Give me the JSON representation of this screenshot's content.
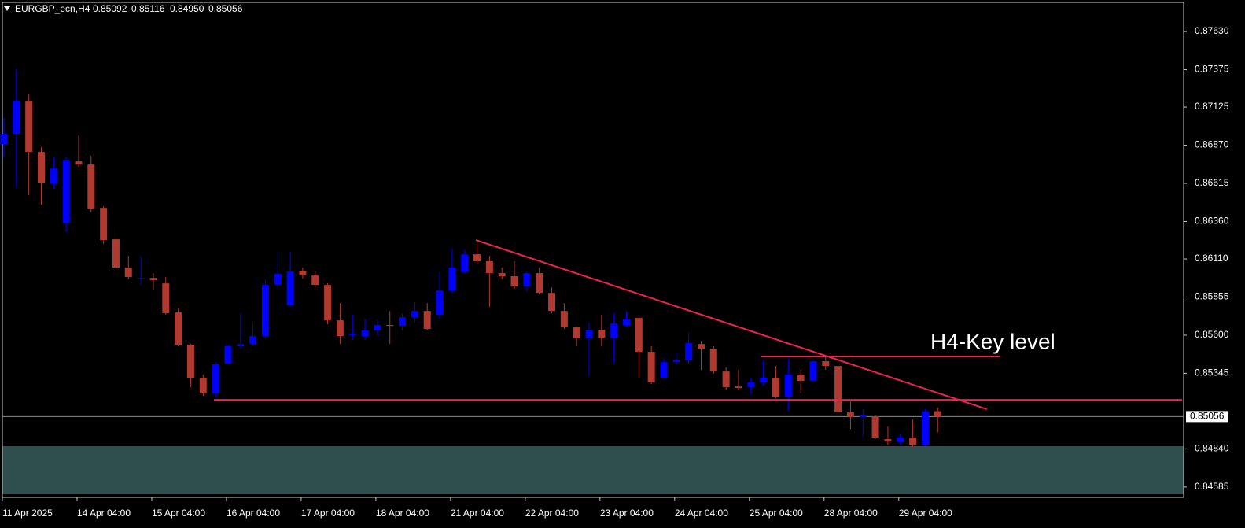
{
  "chart_data": {
    "type": "candlestick",
    "title": "EURGBP_ecn,H4",
    "ohlc_labels": [
      "0.85092",
      "0.85116",
      "0.84950",
      "0.85056"
    ],
    "categories": [
      "11 Apr 2025",
      null,
      null,
      null,
      null,
      null,
      "14 Apr 04:00",
      null,
      null,
      null,
      null,
      null,
      "15 Apr 04:00",
      null,
      null,
      null,
      null,
      null,
      "16 Apr 04:00",
      null,
      null,
      null,
      null,
      null,
      "17 Apr 04:00",
      null,
      null,
      null,
      null,
      null,
      "18 Apr 04:00",
      null,
      null,
      null,
      null,
      null,
      "21 Apr 04:00",
      null,
      null,
      null,
      null,
      null,
      "22 Apr 04:00",
      null,
      null,
      null,
      null,
      null,
      "23 Apr 04:00",
      null,
      null,
      null,
      null,
      null,
      "24 Apr 04:00",
      null,
      null,
      null,
      null,
      null,
      "25 Apr 04:00",
      null,
      null,
      null,
      null,
      null,
      "28 Apr 04:00",
      null,
      null,
      null,
      null,
      null,
      "29 Apr 04:00",
      null,
      null,
      null
    ],
    "open": [
      0.86877,
      0.86946,
      0.87167,
      0.86825,
      0.86614,
      0.86351,
      0.86762,
      0.86741,
      0.86451,
      0.86241,
      0.86052,
      0.85978,
      0.85983,
      0.85946,
      0.85752,
      0.85536,
      0.85315,
      0.8521,
      0.8541,
      0.85526,
      0.85541,
      0.85594,
      0.85936,
      0.85799,
      0.86031,
      0.85999,
      0.85936,
      0.85699,
      0.85599,
      0.85594,
      0.85631,
      0.85668,
      0.85662,
      0.8572,
      0.85762,
      0.85736,
      0.85899,
      0.86025,
      0.86141,
      0.86094,
      0.86015,
      0.85994,
      0.85925,
      0.86015,
      0.85883,
      0.85762,
      0.85652,
      0.85578,
      0.85636,
      0.85584,
      0.85668,
      0.85715,
      0.85489,
      0.85315,
      0.8542,
      0.85431,
      0.85541,
      0.8551,
      0.85357,
      0.85257,
      0.85252,
      0.85284,
      0.85315,
      0.85189,
      0.85336,
      0.85294,
      0.85426,
      0.85394,
      0.85084,
      0.85052,
      0.85058,
      0.84905,
      0.84889,
      0.84915,
      0.84868,
      0.85092
    ],
    "high": [
      0.87051,
      0.87377,
      0.87209,
      0.86856,
      0.86788,
      0.86788,
      0.86935,
      0.86799,
      0.86462,
      0.86325,
      0.86131,
      0.86131,
      0.86015,
      0.85989,
      0.85778,
      0.85541,
      0.85336,
      0.8542,
      0.85536,
      0.85747,
      0.85683,
      0.85973,
      0.86157,
      0.86157,
      0.86052,
      0.86025,
      0.85946,
      0.85815,
      0.85736,
      0.8571,
      0.85699,
      0.85762,
      0.85747,
      0.8582,
      0.85815,
      0.86025,
      0.86178,
      0.86167,
      0.86209,
      0.86131,
      0.86052,
      0.86094,
      0.86025,
      0.86052,
      0.8592,
      0.85815,
      0.85657,
      0.85683,
      0.85736,
      0.85747,
      0.85762,
      0.8572,
      0.85526,
      0.85447,
      0.85484,
      0.8562,
      0.85562,
      0.85526,
      0.85384,
      0.85368,
      0.85315,
      0.85431,
      0.85394,
      0.85441,
      0.85368,
      0.85441,
      0.85457,
      0.8541,
      0.85157,
      0.85105,
      0.85063,
      0.84989,
      0.84937,
      0.85036,
      0.85105,
      0.85116
    ],
    "low": [
      0.86788,
      0.86588,
      0.86536,
      0.86472,
      0.86578,
      0.86288,
      0.86725,
      0.8642,
      0.86209,
      0.86041,
      0.85973,
      0.85936,
      0.85904,
      0.85736,
      0.85526,
      0.85252,
      0.85194,
      0.85184,
      0.85405,
      0.8551,
      0.85526,
      0.85578,
      0.8592,
      0.85789,
      0.85978,
      0.8592,
      0.85673,
      0.85541,
      0.85568,
      0.85568,
      0.85594,
      0.85541,
      0.85631,
      0.85683,
      0.85631,
      0.8571,
      0.85883,
      0.86015,
      0.86073,
      0.85789,
      0.85973,
      0.8591,
      0.85894,
      0.85873,
      0.85747,
      0.85641,
      0.85526,
      0.85326,
      0.85526,
      0.8541,
      0.85652,
      0.85315,
      0.85273,
      0.85305,
      0.85405,
      0.8541,
      0.85368,
      0.85342,
      0.85236,
      0.85236,
      0.852,
      0.85263,
      0.85178,
      0.85094,
      0.8521,
      0.85284,
      0.85368,
      0.85063,
      0.84973,
      0.84921,
      0.84905,
      0.84868,
      0.84868,
      0.84852,
      0.84858,
      0.8495
    ],
    "close": [
      0.86946,
      0.87167,
      0.86825,
      0.8662,
      0.86714,
      0.86772,
      0.86741,
      0.86446,
      0.86236,
      0.86052,
      0.85989,
      0.85983,
      0.85967,
      0.85747,
      0.85536,
      0.85315,
      0.8521,
      0.85405,
      0.85526,
      0.85541,
      0.85594,
      0.85936,
      0.8601,
      0.86025,
      0.85999,
      0.85936,
      0.85699,
      0.85594,
      0.8561,
      0.85631,
      0.85668,
      0.85662,
      0.8572,
      0.85762,
      0.85641,
      0.85899,
      0.86052,
      0.86141,
      0.86094,
      0.86015,
      0.85994,
      0.85925,
      0.86015,
      0.85883,
      0.85762,
      0.85652,
      0.85578,
      0.85636,
      0.85584,
      0.85678,
      0.8571,
      0.85489,
      0.85284,
      0.8542,
      0.85431,
      0.85547,
      0.8551,
      0.85357,
      0.85252,
      0.85247,
      0.85284,
      0.85315,
      0.85189,
      0.85336,
      0.85294,
      0.85426,
      0.85394,
      0.85084,
      0.85052,
      0.85063,
      0.84915,
      0.84889,
      0.84915,
      0.84868,
      0.85092,
      0.85056
    ],
    "up_color": "#0000ff",
    "down_color": "#b03a30",
    "ylim": [
      0.84516,
      0.87825
    ],
    "yticks": [
      {
        "value": 0.8763,
        "label": "0.87630"
      },
      {
        "value": 0.87375,
        "label": "0.87375"
      },
      {
        "value": 0.87125,
        "label": "0.87125"
      },
      {
        "value": 0.8687,
        "label": "0.86870"
      },
      {
        "value": 0.86615,
        "label": "0.86615"
      },
      {
        "value": 0.8636,
        "label": "0.86360"
      },
      {
        "value": 0.8611,
        "label": "0.86110"
      },
      {
        "value": 0.85855,
        "label": "0.85855"
      },
      {
        "value": 0.856,
        "label": "0.85600"
      },
      {
        "value": 0.85345,
        "label": "0.85345"
      },
      {
        "value": 0.8484,
        "label": "0.84840"
      },
      {
        "value": 0.84585,
        "label": "0.84585"
      }
    ],
    "current_price": 0.85056,
    "trend_line": [
      0.86236,
      0.85105
    ],
    "support_level": 0.85168,
    "key_level": 0.85457,
    "key_level_label": "H4-Key level",
    "line_color": "#e8254f",
    "zone": [
      0.84537,
      0.84858
    ],
    "zone_color": "#2f4f4f"
  }
}
